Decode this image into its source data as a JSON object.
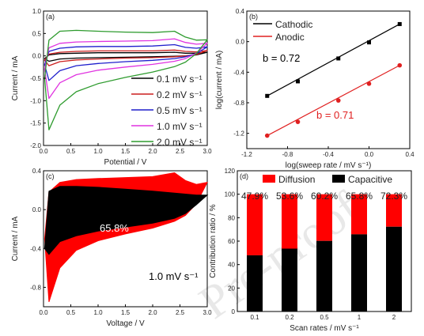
{
  "watermark": "Pre-proof",
  "chart_data": [
    {
      "panel": "(a)",
      "type": "line",
      "xlabel": "Potential / V",
      "ylabel": "Current / mA",
      "xlim": [
        0,
        3.0
      ],
      "ylim": [
        -2.0,
        1.0
      ],
      "xticks": [
        "0.0",
        "0.5",
        "1.0",
        "1.5",
        "2.0",
        "2.5",
        "3.0"
      ],
      "yticks": [
        "-2.0",
        "-1.5",
        "-1.0",
        "-0.5",
        "0.0",
        "0.5",
        "1.0"
      ],
      "legend_position": "bottom-right",
      "series": [
        {
          "name": "0.1 mV s⁻¹",
          "color": "#000000",
          "x": [
            0.02,
            0.1,
            0.3,
            0.6,
            1.0,
            1.5,
            2.0,
            2.4,
            2.6,
            2.8,
            3.0
          ],
          "y_anodic": [
            -0.06,
            0.02,
            0.05,
            0.06,
            0.07,
            0.07,
            0.07,
            0.08,
            0.06,
            0.06,
            0.08
          ],
          "y_cathodic": [
            -0.06,
            -0.12,
            -0.07,
            -0.05,
            -0.04,
            -0.03,
            -0.02,
            -0.01,
            0.0,
            0.02,
            0.08
          ]
        },
        {
          "name": "0.2 mV s⁻¹",
          "color": "#cc1f1f",
          "x": [
            0.02,
            0.1,
            0.3,
            0.6,
            1.0,
            1.5,
            2.0,
            2.4,
            2.6,
            2.8,
            3.0
          ],
          "y_anodic": [
            -0.1,
            0.04,
            0.08,
            0.1,
            0.11,
            0.11,
            0.11,
            0.13,
            0.1,
            0.09,
            0.12
          ],
          "y_cathodic": [
            -0.1,
            -0.22,
            -0.13,
            -0.09,
            -0.07,
            -0.05,
            -0.04,
            -0.02,
            0.0,
            0.03,
            0.12
          ]
        },
        {
          "name": "0.5 mV s⁻¹",
          "color": "#1f1fcc",
          "x": [
            0.02,
            0.1,
            0.3,
            0.6,
            1.0,
            1.5,
            2.0,
            2.4,
            2.6,
            2.8,
            3.0
          ],
          "y_anodic": [
            -0.2,
            0.1,
            0.17,
            0.2,
            0.21,
            0.21,
            0.22,
            0.25,
            0.19,
            0.17,
            0.2
          ],
          "y_cathodic": [
            -0.2,
            -0.55,
            -0.33,
            -0.22,
            -0.17,
            -0.13,
            -0.1,
            -0.06,
            -0.02,
            0.05,
            0.2
          ]
        },
        {
          "name": "1.0 mV s⁻¹",
          "color": "#e033e0",
          "x": [
            0.02,
            0.1,
            0.3,
            0.6,
            1.0,
            1.5,
            2.0,
            2.4,
            2.6,
            2.8,
            3.0
          ],
          "y_anodic": [
            -0.3,
            0.18,
            0.28,
            0.31,
            0.32,
            0.33,
            0.34,
            0.38,
            0.3,
            0.26,
            0.28
          ],
          "y_cathodic": [
            -0.3,
            -0.95,
            -0.6,
            -0.42,
            -0.32,
            -0.25,
            -0.19,
            -0.12,
            -0.06,
            0.06,
            0.28
          ]
        },
        {
          "name": "2.0 mV s⁻¹",
          "color": "#2e9b2e",
          "x": [
            0.02,
            0.1,
            0.3,
            0.6,
            1.0,
            1.5,
            2.0,
            2.4,
            2.6,
            2.8,
            3.0
          ],
          "y_anodic": [
            -0.5,
            0.35,
            0.55,
            0.57,
            0.55,
            0.53,
            0.52,
            0.55,
            0.42,
            0.35,
            0.36
          ],
          "y_cathodic": [
            -0.5,
            -1.65,
            -1.1,
            -0.8,
            -0.62,
            -0.48,
            -0.36,
            -0.24,
            -0.14,
            0.05,
            0.36
          ]
        }
      ]
    },
    {
      "panel": "(b)",
      "type": "scatter",
      "xlabel": "log(sweep rate / mV s⁻¹)",
      "ylabel": "log(current / mA)",
      "xlim": [
        -1.2,
        0.4
      ],
      "ylim": [
        -1.4,
        0.4
      ],
      "xticks": [
        "-1.2",
        "-0.8",
        "-0.4",
        "0.0",
        "0.4"
      ],
      "yticks": [
        "-1.2",
        "-0.8",
        "-0.4",
        "0.0",
        "0.4"
      ],
      "legend_position": "top-left",
      "series": [
        {
          "name": "Cathodic",
          "color": "#000000",
          "marker": "square",
          "x": [
            -1.0,
            -0.699,
            -0.301,
            0.0,
            0.301
          ],
          "y": [
            -0.71,
            -0.52,
            -0.22,
            -0.01,
            0.23
          ]
        },
        {
          "name": "Anodic",
          "color": "#e02020",
          "marker": "circle",
          "x": [
            -1.0,
            -0.699,
            -0.301,
            0.0,
            0.301
          ],
          "y": [
            -1.23,
            -1.05,
            -0.77,
            -0.55,
            -0.31
          ]
        }
      ],
      "annotations": [
        {
          "text": "b = 0.72",
          "color": "#000000"
        },
        {
          "text": "b = 0.71",
          "color": "#e02020"
        }
      ]
    },
    {
      "panel": "(c)",
      "type": "area",
      "xlabel": "Voltage / V",
      "ylabel": "Current / mA",
      "xlim": [
        0,
        3.0
      ],
      "ylim": [
        -1.0,
        0.4
      ],
      "xticks": [
        "0.0",
        "0.5",
        "1.0",
        "1.5",
        "2.0",
        "2.5",
        "3.0"
      ],
      "yticks": [
        "-0.8",
        "-0.4",
        "0.0",
        "0.4"
      ],
      "total": {
        "color": "#ff0000",
        "x": [
          0.02,
          0.1,
          0.3,
          0.6,
          1.0,
          1.5,
          2.0,
          2.4,
          2.6,
          2.8,
          3.0
        ],
        "y_anodic": [
          -0.3,
          0.18,
          0.28,
          0.31,
          0.32,
          0.33,
          0.34,
          0.38,
          0.3,
          0.26,
          0.28
        ],
        "y_cathodic": [
          -0.3,
          -0.95,
          -0.6,
          -0.42,
          -0.32,
          -0.25,
          -0.19,
          -0.12,
          -0.06,
          0.06,
          0.28
        ]
      },
      "capacitive": {
        "color": "#000000",
        "x": [
          0.02,
          0.1,
          0.3,
          0.6,
          1.0,
          1.5,
          2.0,
          2.4,
          2.6,
          2.8,
          3.0
        ],
        "y_anodic": [
          -0.4,
          0.19,
          0.24,
          0.24,
          0.23,
          0.21,
          0.19,
          0.17,
          0.16,
          0.15,
          0.15
        ],
        "y_cathodic": [
          -0.4,
          -0.46,
          -0.33,
          -0.27,
          -0.22,
          -0.18,
          -0.14,
          -0.09,
          -0.04,
          0.05,
          0.15
        ]
      },
      "annotations": [
        {
          "text": "65.8%",
          "color": "#ffffff"
        },
        {
          "text": "1.0 mV s⁻¹",
          "color": "#000000"
        }
      ]
    },
    {
      "panel": "(d)",
      "type": "bar",
      "stacked": true,
      "xlabel": "Scan rates / mV s⁻¹",
      "ylabel": "Contribution ratio / %",
      "ylim": [
        0,
        120
      ],
      "yticks": [
        "0",
        "20",
        "40",
        "60",
        "80",
        "100",
        "120"
      ],
      "categories": [
        "0.1",
        "0.2",
        "0.5",
        "1",
        "2"
      ],
      "legend_position": "top",
      "series": [
        {
          "name": "Capacitive",
          "color": "#000000",
          "values": [
            47.9,
            53.6,
            60.2,
            65.8,
            72.3
          ]
        },
        {
          "name": "Diffusion",
          "color": "#ff0000",
          "values": [
            52.1,
            46.4,
            39.8,
            34.2,
            27.7
          ]
        }
      ],
      "bar_labels": [
        "47.9%",
        "53.6%",
        "60.2%",
        "65.8%",
        "72.3%"
      ]
    }
  ]
}
